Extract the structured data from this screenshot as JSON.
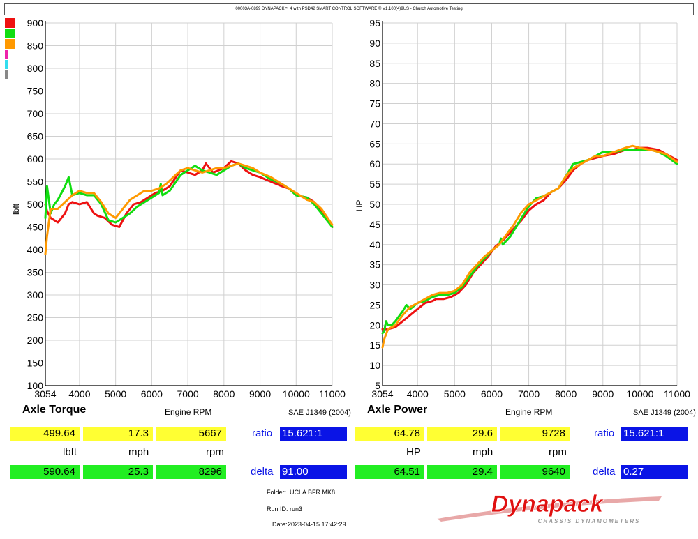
{
  "header": {
    "text": "00003A-0899 DYNAPACK™ 4 with PSD42 SMART CONTROL SOFTWARE ® V1.100(4)9US - Church Automotive Testing"
  },
  "legend_colors": [
    "#ee1111",
    "#11dd11",
    "#ff9900",
    "#ee22aa",
    "#33ddee",
    "#888888"
  ],
  "chart_data": [
    {
      "type": "line",
      "title": "Axle Torque",
      "xlabel": "Engine RPM",
      "ylabel": "lbft",
      "note": "SAE J1349 (2004)",
      "xlim": [
        3054,
        11000
      ],
      "ylim": [
        100,
        900
      ],
      "x_ticks": [
        "3054",
        "4000",
        "5000",
        "6000",
        "7000",
        "8000",
        "9000",
        "10000",
        "11000"
      ],
      "y_ticks": [
        "100",
        "150",
        "200",
        "250",
        "300",
        "350",
        "400",
        "450",
        "500",
        "550",
        "600",
        "650",
        "700",
        "750",
        "800",
        "850",
        "900"
      ],
      "grid": true,
      "series": [
        {
          "color": "#ee1111",
          "x": [
            3054,
            3100,
            3200,
            3400,
            3600,
            3700,
            3800,
            4000,
            4200,
            4400,
            4500,
            4700,
            4900,
            5100,
            5300,
            5500,
            5700,
            5900,
            6100,
            6300,
            6500,
            6800,
            7000,
            7200,
            7400,
            7500,
            7700,
            8000,
            8200,
            8400,
            8600,
            8800,
            9000,
            9300,
            9600,
            9800,
            10000,
            10300,
            10500,
            10700,
            11000
          ],
          "y": [
            500,
            485,
            470,
            460,
            480,
            500,
            505,
            500,
            505,
            480,
            475,
            470,
            455,
            450,
            480,
            500,
            505,
            515,
            525,
            530,
            540,
            575,
            570,
            565,
            575,
            590,
            570,
            580,
            595,
            590,
            575,
            565,
            560,
            550,
            540,
            535,
            520,
            515,
            505,
            485,
            450
          ]
        },
        {
          "color": "#11dd11",
          "x": [
            3054,
            3100,
            3150,
            3200,
            3300,
            3400,
            3600,
            3700,
            3800,
            4000,
            4200,
            4400,
            4600,
            4800,
            5000,
            5200,
            5400,
            5600,
            5800,
            6000,
            6200,
            6250,
            6300,
            6500,
            6800,
            7000,
            7200,
            7400,
            7600,
            7800,
            8000,
            8200,
            8400,
            8600,
            8800,
            9000,
            9300,
            9600,
            9800,
            10000,
            10300,
            10500,
            10700,
            11000
          ],
          "y": [
            470,
            540,
            510,
            480,
            500,
            510,
            540,
            560,
            520,
            525,
            520,
            520,
            500,
            465,
            460,
            470,
            480,
            495,
            505,
            515,
            525,
            545,
            520,
            530,
            565,
            575,
            585,
            575,
            570,
            565,
            575,
            585,
            590,
            580,
            575,
            570,
            555,
            545,
            535,
            520,
            515,
            500,
            480,
            450
          ]
        },
        {
          "color": "#ff9900",
          "x": [
            3054,
            3100,
            3200,
            3400,
            3600,
            3800,
            4000,
            4200,
            4400,
            4600,
            4800,
            5000,
            5200,
            5400,
            5600,
            5800,
            6000,
            6200,
            6400,
            6600,
            6800,
            7000,
            7200,
            7400,
            7600,
            7800,
            8000,
            8200,
            8400,
            8600,
            8800,
            9000,
            9300,
            9600,
            9800,
            10000,
            10300,
            10500,
            10700,
            11000
          ],
          "y": [
            390,
            430,
            490,
            490,
            505,
            520,
            530,
            525,
            525,
            505,
            480,
            470,
            490,
            510,
            520,
            530,
            530,
            535,
            545,
            560,
            575,
            580,
            575,
            570,
            575,
            580,
            580,
            585,
            590,
            585,
            580,
            570,
            560,
            545,
            535,
            525,
            510,
            505,
            490,
            455
          ]
        }
      ]
    },
    {
      "type": "line",
      "title": "Axle Power",
      "xlabel": "Engine RPM",
      "ylabel": "HP",
      "note": "SAE J1349 (2004)",
      "xlim": [
        3054,
        11000
      ],
      "ylim": [
        5,
        95
      ],
      "x_ticks": [
        "3054",
        "4000",
        "5000",
        "6000",
        "7000",
        "8000",
        "9000",
        "10000",
        "11000"
      ],
      "y_ticks": [
        "5",
        "10",
        "15",
        "20",
        "25",
        "30",
        "35",
        "40",
        "45",
        "50",
        "55",
        "60",
        "65",
        "70",
        "75",
        "80",
        "85",
        "90",
        "95"
      ],
      "grid": true,
      "series": [
        {
          "color": "#ee1111",
          "x": [
            3054,
            3200,
            3400,
            3600,
            3800,
            4000,
            4200,
            4400,
            4500,
            4700,
            4900,
            5100,
            5300,
            5500,
            5700,
            5900,
            6100,
            6300,
            6500,
            6800,
            7000,
            7200,
            7400,
            7600,
            7800,
            8000,
            8200,
            8400,
            8600,
            8800,
            9000,
            9300,
            9600,
            9800,
            10000,
            10200,
            10500,
            10700,
            11000
          ],
          "y": [
            19,
            19,
            19.5,
            21,
            22.5,
            24,
            25.5,
            26,
            26.5,
            26.5,
            27,
            28,
            30,
            33,
            35,
            37,
            39.5,
            41,
            43,
            46,
            48.5,
            50,
            51,
            53,
            54,
            56,
            58.5,
            60,
            61,
            61.5,
            62,
            62.5,
            63.5,
            63.5,
            64,
            64,
            63.5,
            62.5,
            61
          ]
        },
        {
          "color": "#11dd11",
          "x": [
            3054,
            3100,
            3150,
            3200,
            3300,
            3400,
            3600,
            3700,
            3800,
            4000,
            4200,
            4400,
            4600,
            4800,
            5000,
            5200,
            5400,
            5600,
            5800,
            6000,
            6200,
            6250,
            6300,
            6500,
            6800,
            7000,
            7200,
            7400,
            7600,
            7800,
            8000,
            8200,
            8400,
            8600,
            8800,
            9000,
            9300,
            9600,
            9800,
            10000,
            10300,
            10500,
            10700,
            11000
          ],
          "y": [
            18,
            18.5,
            21,
            20,
            20,
            21,
            23.5,
            25,
            24,
            25.5,
            26,
            27,
            27.5,
            27.5,
            28,
            29.5,
            32,
            34.5,
            36.5,
            38.5,
            40,
            41.5,
            40,
            42,
            46.5,
            49.5,
            51.5,
            52,
            53,
            54,
            57,
            60,
            60.5,
            61,
            62,
            63,
            63,
            63.5,
            63.5,
            63.5,
            63.5,
            63,
            62,
            60
          ]
        },
        {
          "color": "#ff9900",
          "x": [
            3054,
            3100,
            3200,
            3400,
            3600,
            3800,
            4000,
            4200,
            4400,
            4600,
            4800,
            5000,
            5200,
            5400,
            5600,
            5800,
            6000,
            6200,
            6400,
            6600,
            6800,
            7000,
            7200,
            7400,
            7600,
            7800,
            8000,
            8200,
            8400,
            8600,
            8800,
            9000,
            9300,
            9600,
            9800,
            10000,
            10300,
            10500,
            10700,
            11000
          ],
          "y": [
            14.5,
            16.5,
            19,
            20,
            22.5,
            24.5,
            25.5,
            26.5,
            27.5,
            28,
            28,
            28.5,
            30,
            33,
            35,
            37,
            38.5,
            40,
            42.5,
            45,
            48,
            50,
            51,
            52,
            53,
            54,
            57,
            59,
            60,
            61,
            62,
            62,
            63,
            64,
            64.5,
            64,
            63.5,
            63,
            62.5,
            60.5
          ]
        }
      ]
    }
  ],
  "panels": [
    {
      "row1": {
        "v1": "499.64",
        "v2": "17.3",
        "v3": "5667",
        "ratio_label": "ratio",
        "ratio": "15.621:1"
      },
      "units": {
        "u1": "lbft",
        "u2": "mph",
        "u3": "rpm"
      },
      "row2": {
        "v1": "590.64",
        "v2": "25.3",
        "v3": "8296",
        "delta_label": "delta",
        "delta": "91.00"
      }
    },
    {
      "row1": {
        "v1": "64.78",
        "v2": "29.6",
        "v3": "9728",
        "ratio_label": "ratio",
        "ratio": "15.621:1"
      },
      "units": {
        "u1": "HP",
        "u2": "mph",
        "u3": "rpm"
      },
      "row2": {
        "v1": "64.51",
        "v2": "29.4",
        "v3": "9640",
        "delta_label": "delta",
        "delta": "0.27"
      }
    }
  ],
  "info": {
    "folder_label": "Folder:",
    "folder": "UCLA BFR MK8",
    "run_label": "Run ID:",
    "run": "run3",
    "date_label": "Date:",
    "date": "2023-04-15 17:42:29"
  },
  "logo": {
    "text": "Dynapack",
    "sub": "CHASSIS DYNAMOMETERS"
  }
}
